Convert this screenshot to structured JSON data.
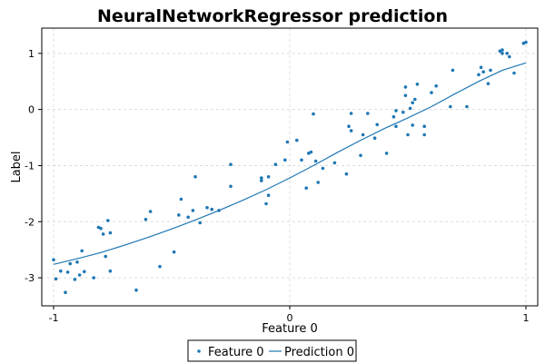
{
  "colors": {
    "series": "#1f77b4",
    "axis": "#000000",
    "grid": "#dcdcdc"
  },
  "chart_data": {
    "type": "scatter",
    "title": "NeuralNetworkRegressor prediction",
    "xlabel": "Feature 0",
    "ylabel": "Label",
    "xlim": [
      -1.05,
      1.05
    ],
    "ylim": [
      -3.5,
      1.45
    ],
    "xticks": [
      -1,
      0,
      1
    ],
    "xtick_labels": [
      "-1",
      "0",
      "1"
    ],
    "yticks": [
      -3,
      -2,
      -1,
      0,
      1
    ],
    "ytick_labels": [
      "-3",
      "-2",
      "-1",
      "0",
      "1"
    ],
    "grid": true,
    "legend_position": "bottom",
    "series": [
      {
        "name": "Feature 0",
        "kind": "scatter",
        "x": [
          -1.0,
          -0.99,
          -0.97,
          -0.95,
          -0.94,
          -0.93,
          -0.91,
          -0.9,
          -0.89,
          -0.88,
          -0.87,
          -0.83,
          -0.81,
          -0.8,
          -0.79,
          -0.78,
          -0.77,
          -0.76,
          -0.76,
          -0.65,
          -0.61,
          -0.59,
          -0.55,
          -0.49,
          -0.47,
          -0.46,
          -0.43,
          -0.41,
          -0.4,
          -0.38,
          -0.35,
          -0.33,
          -0.3,
          -0.25,
          -0.25,
          -0.12,
          -0.12,
          -0.1,
          -0.09,
          -0.09,
          -0.06,
          -0.02,
          -0.01,
          0.03,
          0.05,
          0.07,
          0.08,
          0.09,
          0.1,
          0.11,
          0.12,
          0.14,
          0.19,
          0.24,
          0.25,
          0.26,
          0.26,
          0.3,
          0.31,
          0.33,
          0.36,
          0.37,
          0.41,
          0.44,
          0.45,
          0.45,
          0.48,
          0.49,
          0.49,
          0.5,
          0.51,
          0.52,
          0.52,
          0.53,
          0.54,
          0.57,
          0.57,
          0.6,
          0.62,
          0.68,
          0.69,
          0.75,
          0.8,
          0.81,
          0.82,
          0.84,
          0.85,
          0.89,
          0.9,
          0.9,
          0.92,
          0.93,
          0.95,
          0.99,
          1.0
        ],
        "y": [
          -2.68,
          -3.02,
          -2.88,
          -3.26,
          -2.9,
          -2.75,
          -3.03,
          -2.72,
          -2.95,
          -2.52,
          -2.89,
          -3.0,
          -2.1,
          -2.12,
          -2.22,
          -2.62,
          -1.98,
          -2.2,
          -2.88,
          -3.22,
          -1.96,
          -1.82,
          -2.8,
          -2.54,
          -1.88,
          -1.6,
          -1.92,
          -1.8,
          -1.2,
          -2.02,
          -1.75,
          -1.78,
          -1.8,
          -0.98,
          -1.37,
          -1.22,
          -1.27,
          -1.68,
          -1.2,
          -1.53,
          -0.98,
          -0.9,
          -0.58,
          -0.55,
          -0.9,
          -1.4,
          -0.78,
          -0.76,
          -0.08,
          -0.92,
          -1.3,
          -1.05,
          -0.95,
          -1.15,
          -0.3,
          -0.07,
          -0.38,
          -0.82,
          -0.45,
          -0.07,
          -0.51,
          -0.27,
          -0.78,
          -0.13,
          -0.3,
          -0.02,
          -0.05,
          0.4,
          0.25,
          -0.45,
          0.02,
          -0.28,
          0.12,
          0.18,
          0.45,
          -0.3,
          -0.45,
          0.3,
          0.42,
          0.05,
          0.7,
          0.05,
          0.62,
          0.75,
          0.67,
          0.46,
          0.7,
          1.04,
          1.06,
          1.0,
          1.0,
          0.94,
          0.65,
          1.18,
          1.2
        ]
      },
      {
        "name": "Prediction 0",
        "kind": "line",
        "x": [
          -1.0,
          -0.9,
          -0.8,
          -0.7,
          -0.6,
          -0.5,
          -0.4,
          -0.3,
          -0.2,
          -0.1,
          0.0,
          0.1,
          0.2,
          0.3,
          0.4,
          0.5,
          0.6,
          0.7,
          0.8,
          0.9,
          1.0
        ],
        "y": [
          -2.76,
          -2.66,
          -2.55,
          -2.42,
          -2.28,
          -2.13,
          -1.97,
          -1.8,
          -1.62,
          -1.43,
          -1.22,
          -1.0,
          -0.77,
          -0.55,
          -0.34,
          -0.15,
          0.05,
          0.28,
          0.5,
          0.7,
          0.83
        ]
      }
    ]
  }
}
